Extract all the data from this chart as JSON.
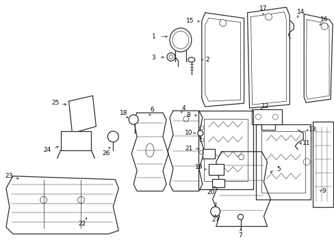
{
  "background_color": "#ffffff",
  "line_color": "#2a2a2a",
  "text_color": "#000000",
  "figure_width": 4.89,
  "figure_height": 3.6,
  "dpi": 100
}
